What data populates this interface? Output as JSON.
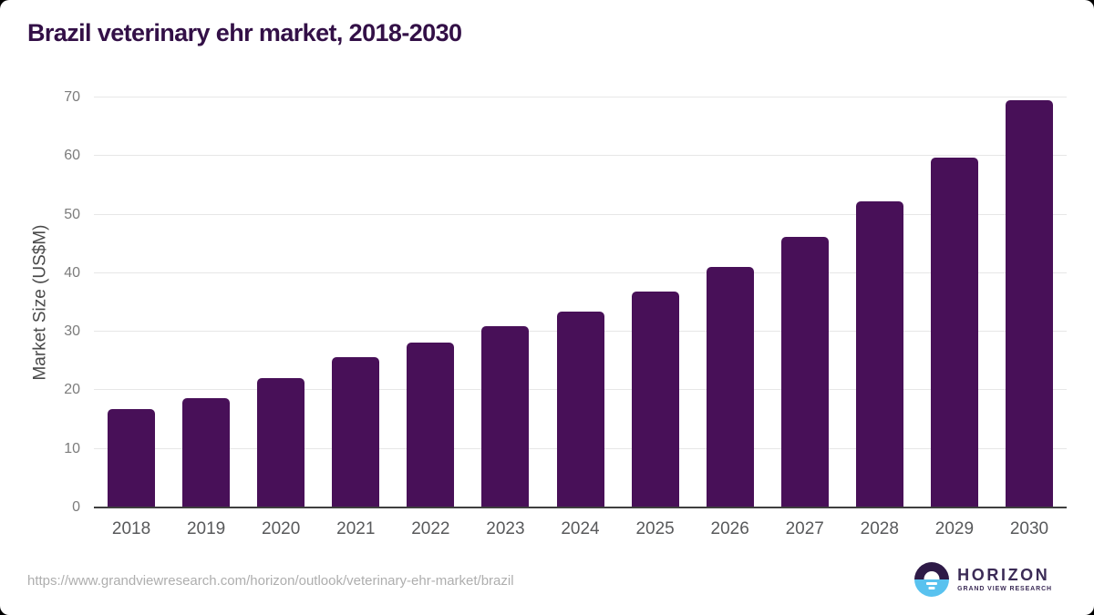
{
  "page": {
    "title": "Brazil veterinary ehr market, 2018-2030",
    "footer_url": "https://www.grandviewresearch.com/horizon/outlook/veterinary-ehr-market/brazil",
    "logo": {
      "name": "HORIZON",
      "subtitle": "GRAND VIEW RESEARCH",
      "icon": "horizon-sun-over-water-icon"
    }
  },
  "colors": {
    "bar": "#481058",
    "title_text": "#331047",
    "axis_line": "#3f3f3f",
    "gridline": "#e7e7e7",
    "tick_label": "#7c7c7c",
    "x_label": "#58595b",
    "y_axis_title": "#4a4a4a",
    "url_text": "#aeaeae",
    "logo_text": "#3b2b56",
    "logo_circle_top": "#2e1a47",
    "logo_circle_bottom": "#59c2ef"
  },
  "chart_data": {
    "type": "bar",
    "title": "Brazil veterinary ehr market, 2018-2030",
    "categories": [
      "2018",
      "2019",
      "2020",
      "2021",
      "2022",
      "2023",
      "2024",
      "2025",
      "2026",
      "2027",
      "2028",
      "2029",
      "2030"
    ],
    "values": [
      16.8,
      18.7,
      22.1,
      25.7,
      28.2,
      31.0,
      33.5,
      36.8,
      41.0,
      46.2,
      52.3,
      59.8,
      69.5
    ],
    "xlabel": "",
    "ylabel": "Market Size (US$M)",
    "ylim": [
      0,
      70
    ],
    "yticks": [
      0,
      10,
      20,
      30,
      40,
      50,
      60,
      70
    ],
    "grid": true,
    "legend_position": "none"
  }
}
